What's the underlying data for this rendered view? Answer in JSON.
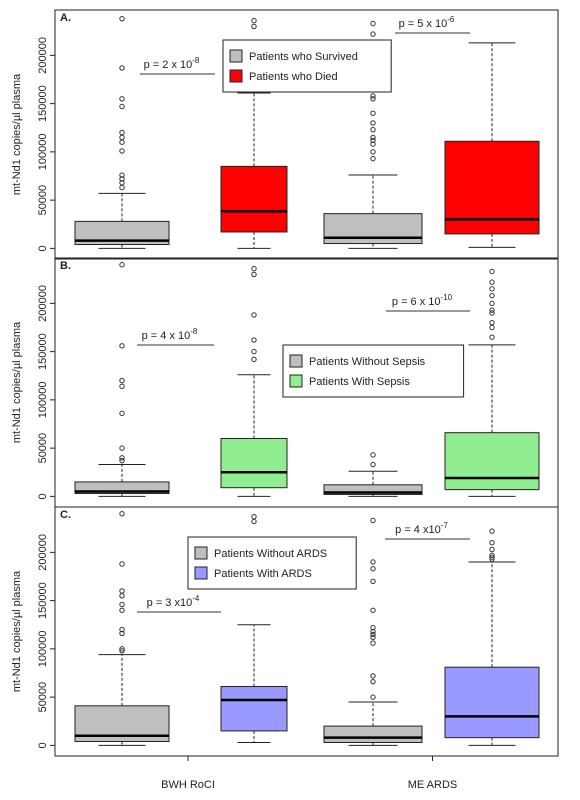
{
  "chart_data": [
    {
      "type": "box",
      "panel_label": "A.",
      "ylabel": "mt-Nd1 copies/µl plasma",
      "ylim": [
        -11000,
        247000
      ],
      "yticks": [
        0,
        50000,
        100000,
        150000,
        200000
      ],
      "legend": "top-center",
      "series": [
        {
          "name": "Patients who Survived",
          "color": "#bfbfbf",
          "boxes": [
            {
              "low": 0,
              "q1": 4000,
              "median": 8000,
              "q3": 28000,
              "high": 57000,
              "outliers": [
                238000,
                187000,
                155000,
                147000,
                120000,
                115000,
                110000,
                101000,
                76000,
                72000,
                68000,
                63000
              ]
            },
            {
              "low": 0,
              "q1": 5000,
              "median": 11000,
              "q3": 36000,
              "high": 76000,
              "outliers": [
                233000,
                222000,
                210000,
                200000,
                193000,
                190000,
                185000,
                178000,
                158000,
                155000,
                140000,
                130000,
                123000,
                115000,
                112000,
                108000,
                100000,
                93000
              ]
            }
          ]
        },
        {
          "name": "Patients who Died",
          "color": "#ff0000",
          "boxes": [
            {
              "low": 0,
              "q1": 17000,
              "median": 38500,
              "q3": 85000,
              "high": 161000,
              "outliers": [
                236000,
                230000
              ]
            },
            {
              "low": 1000,
              "q1": 15000,
              "median": 30000,
              "q3": 111000,
              "high": 213000,
              "outliers": []
            }
          ]
        }
      ],
      "annotations": [
        {
          "text": "p = 2 x 10",
          "exponent": "-8"
        },
        {
          "text": "p = 5 x 10",
          "exponent": "-6"
        }
      ]
    },
    {
      "type": "box",
      "panel_label": "B.",
      "ylabel": "mt-Nd1 copies/µl plasma",
      "ylim": [
        -11000,
        247000
      ],
      "yticks": [
        0,
        50000,
        100000,
        150000,
        200000
      ],
      "legend": "center-right",
      "series": [
        {
          "name": "Patients Without Sepsis",
          "color": "#bfbfbf",
          "boxes": [
            {
              "low": 0,
              "q1": 3000,
              "median": 5000,
              "q3": 15000,
              "high": 33000,
              "outliers": [
                240000,
                156000,
                120000,
                114000,
                86000,
                50000,
                40000,
                37000
              ]
            },
            {
              "low": 0,
              "q1": 2000,
              "median": 4000,
              "q3": 12000,
              "high": 26000,
              "outliers": [
                43000,
                33000
              ]
            }
          ]
        },
        {
          "name": "Patients With Sepsis",
          "color": "#90ee90",
          "boxes": [
            {
              "low": 0,
              "q1": 9000,
              "median": 25000,
              "q3": 60000,
              "high": 126000,
              "outliers": [
                236000,
                230000,
                188000,
                162000,
                150000,
                142000
              ]
            },
            {
              "low": 0,
              "q1": 7000,
              "median": 19000,
              "q3": 66000,
              "high": 157000,
              "outliers": [
                233000,
                222000,
                215000,
                208000,
                200000,
                193000,
                190000,
                180000,
                175000,
                165000
              ]
            }
          ]
        }
      ],
      "annotations": [
        {
          "text": "p = 4 x 10",
          "exponent": "-8"
        },
        {
          "text": "p = 6 x 10",
          "exponent": "-10"
        }
      ]
    },
    {
      "type": "box",
      "panel_label": "C.",
      "ylabel": "mt-Nd1 copies/µl plasma",
      "ylim": [
        -11000,
        247000
      ],
      "yticks": [
        0,
        50000,
        100000,
        150000,
        200000
      ],
      "legend": "top-left",
      "categories": [
        "BWH RoCI",
        "ME ARDS"
      ],
      "series": [
        {
          "name": "Patients Without ARDS",
          "color": "#bfbfbf",
          "boxes": [
            {
              "low": 0,
              "q1": 4000,
              "median": 10000,
              "q3": 41000,
              "high": 94000,
              "outliers": [
                240000,
                188000,
                160000,
                155000,
                146000,
                140000,
                120000,
                116000,
                100000,
                98000
              ]
            },
            {
              "low": 0,
              "q1": 3000,
              "median": 8000,
              "q3": 20000,
              "high": 45000,
              "outliers": [
                233000,
                190000,
                183000,
                170000,
                140000,
                122000,
                118000,
                115000,
                112000,
                106000,
                72000,
                66000,
                50000
              ]
            }
          ]
        },
        {
          "name": "Patients With ARDS",
          "color": "#9999ff",
          "boxes": [
            {
              "low": 3000,
              "q1": 15000,
              "median": 47000,
              "q3": 61000,
              "high": 125000,
              "outliers": [
                237000,
                232000
              ]
            },
            {
              "low": 0,
              "q1": 8000,
              "median": 30000,
              "q3": 81000,
              "high": 190000,
              "outliers": [
                222000,
                210000,
                203000,
                197000,
                195000,
                193000
              ]
            }
          ]
        }
      ],
      "annotations": [
        {
          "text": "p = 3 x10",
          "exponent": "-4"
        },
        {
          "text": "p = 4 x10",
          "exponent": "-7"
        }
      ]
    }
  ]
}
